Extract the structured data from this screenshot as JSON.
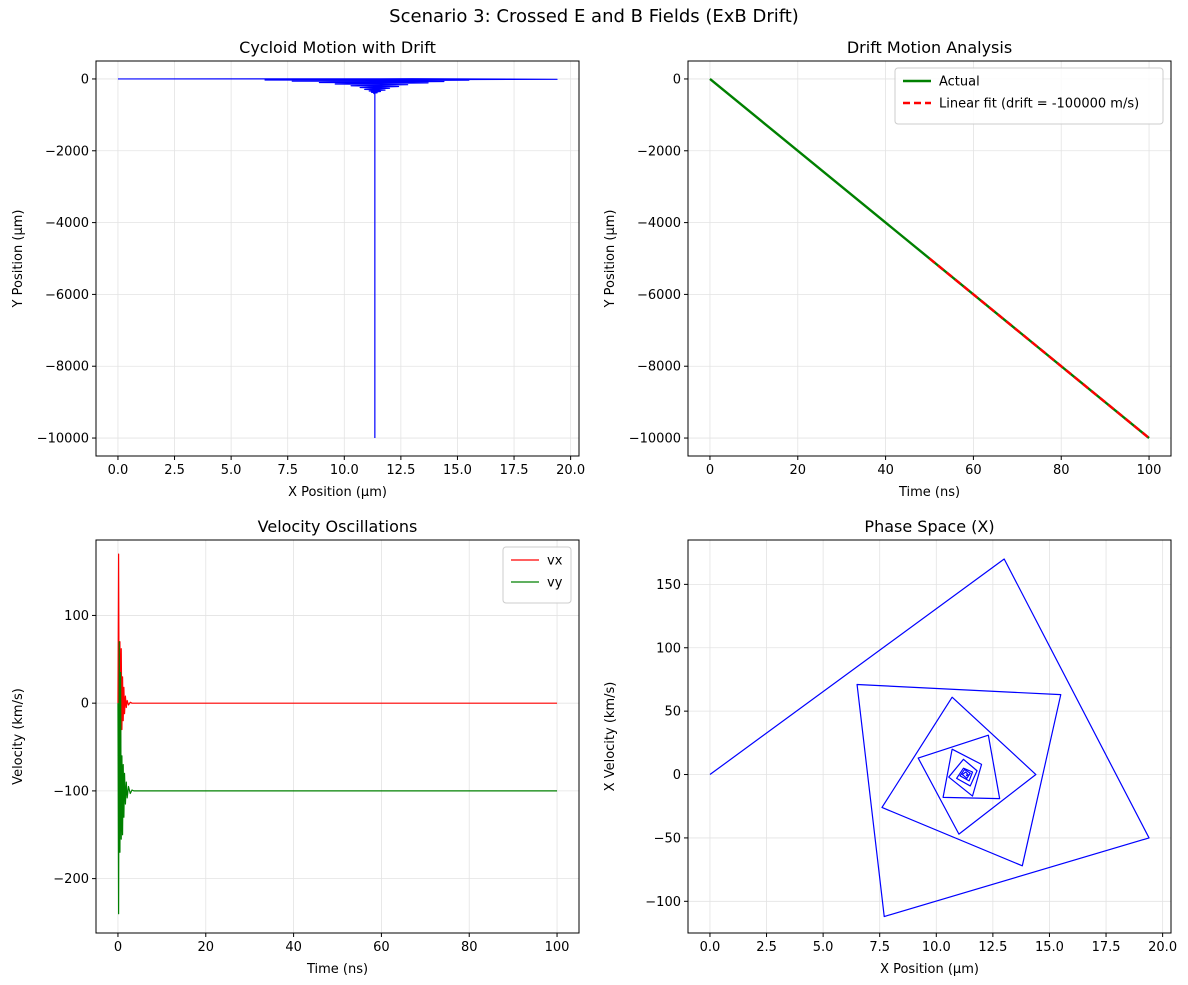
{
  "figure": {
    "suptitle": "Scenario 3: Crossed E and B Fields (ExB Drift)"
  },
  "colors": {
    "blue": "#0000ff",
    "red": "#ff0000",
    "green": "#008000",
    "grid": "#e3e3e3"
  },
  "chart_data": [
    {
      "type": "line",
      "title": "Cycloid Motion with Drift",
      "xlabel": "X Position (µm)",
      "ylabel": "Y Position (µm)",
      "xlim": [
        -0.97,
        20.37
      ],
      "ylim": [
        -10500,
        500
      ],
      "xticks": [
        0,
        2.5,
        5,
        7.5,
        10,
        12.5,
        15,
        17.5,
        20
      ],
      "xticklabels": [
        "0.0",
        "2.5",
        "5.0",
        "7.5",
        "10.0",
        "12.5",
        "15.0",
        "17.5",
        "20.0"
      ],
      "yticks": [
        0,
        -2000,
        -4000,
        -6000,
        -8000,
        -10000
      ],
      "yticklabels": [
        "0",
        "−2000",
        "−4000",
        "−6000",
        "−8000",
        "−10000"
      ],
      "grid": true,
      "series": [
        {
          "color": "#0000ff",
          "points": [
            [
              0,
              0
            ],
            [
              13.0,
              5
            ],
            [
              19.4,
              -10
            ],
            [
              6.5,
              -30
            ],
            [
              15.5,
              -35
            ],
            [
              7.7,
              -60
            ],
            [
              14.4,
              -70
            ],
            [
              8.9,
              -100
            ],
            [
              13.7,
              -110
            ],
            [
              9.6,
              -140
            ],
            [
              12.8,
              -160
            ],
            [
              10.3,
              -190
            ],
            [
              12.4,
              -210
            ],
            [
              10.7,
              -240
            ],
            [
              12.0,
              -260
            ],
            [
              10.9,
              -290
            ],
            [
              11.8,
              -310
            ],
            [
              11.1,
              -335
            ],
            [
              11.6,
              -350
            ],
            [
              11.2,
              -370
            ],
            [
              11.45,
              -385
            ],
            [
              11.3,
              -400
            ],
            [
              11.35,
              -420
            ],
            [
              11.35,
              -10000
            ]
          ]
        }
      ]
    },
    {
      "type": "line",
      "title": "Drift Motion Analysis",
      "xlabel": "Time (ns)",
      "ylabel": "Y Position (µm)",
      "xlim": [
        -5,
        105
      ],
      "ylim": [
        -10500,
        500
      ],
      "xticks": [
        0,
        20,
        40,
        60,
        80,
        100
      ],
      "xticklabels": [
        "0",
        "20",
        "40",
        "60",
        "80",
        "100"
      ],
      "yticks": [
        0,
        -2000,
        -4000,
        -6000,
        -8000,
        -10000
      ],
      "yticklabels": [
        "0",
        "−2000",
        "−4000",
        "−6000",
        "−8000",
        "−10000"
      ],
      "grid": true,
      "legend": "top-right",
      "series": [
        {
          "name": "Actual",
          "color": "#008000",
          "style": "solid",
          "points": [
            [
              0,
              0
            ],
            [
              100,
              -10000
            ]
          ]
        },
        {
          "name": "Linear fit (drift = -100000 m/s)",
          "color": "#ff0000",
          "style": "dashed",
          "points": [
            [
              50,
              -5000
            ],
            [
              100,
              -10000
            ]
          ]
        }
      ]
    },
    {
      "type": "line",
      "title": "Velocity Oscillations",
      "xlabel": "Time (ns)",
      "ylabel": "Velocity (km/s)",
      "xlim": [
        -5,
        105
      ],
      "ylim": [
        -262,
        186
      ],
      "xticks": [
        0,
        20,
        40,
        60,
        80,
        100
      ],
      "xticklabels": [
        "0",
        "20",
        "40",
        "60",
        "80",
        "100"
      ],
      "yticks": [
        100,
        0,
        -100,
        -200
      ],
      "yticklabels": [
        "100",
        "0",
        "−100",
        "−200"
      ],
      "grid": true,
      "legend": "top-right",
      "series": [
        {
          "name": "vx",
          "color": "#ff0000",
          "points": [
            [
              0,
              0
            ],
            [
              0.15,
              170
            ],
            [
              0.3,
              -50
            ],
            [
              0.45,
              70
            ],
            [
              0.6,
              -45
            ],
            [
              0.75,
              62
            ],
            [
              0.9,
              -30
            ],
            [
              1.05,
              30
            ],
            [
              1.2,
              -20
            ],
            [
              1.35,
              18
            ],
            [
              1.5,
              -12
            ],
            [
              1.7,
              8
            ],
            [
              1.9,
              -5
            ],
            [
              2.1,
              3
            ],
            [
              2.4,
              -2
            ],
            [
              2.8,
              1
            ],
            [
              3.2,
              0
            ],
            [
              100,
              0
            ]
          ]
        },
        {
          "name": "vy",
          "color": "#008000",
          "points": [
            [
              0,
              0
            ],
            [
              0.15,
              -240
            ],
            [
              0.3,
              70
            ],
            [
              0.45,
              -170
            ],
            [
              0.6,
              35
            ],
            [
              0.75,
              -155
            ],
            [
              0.9,
              -60
            ],
            [
              1.05,
              -150
            ],
            [
              1.2,
              -70
            ],
            [
              1.35,
              -130
            ],
            [
              1.5,
              -80
            ],
            [
              1.7,
              -115
            ],
            [
              1.9,
              -90
            ],
            [
              2.1,
              -108
            ],
            [
              2.4,
              -95
            ],
            [
              2.8,
              -103
            ],
            [
              3.2,
              -99
            ],
            [
              3.6,
              -100
            ],
            [
              100,
              -100
            ]
          ]
        }
      ]
    },
    {
      "type": "line",
      "title": "Phase Space (X)",
      "xlabel": "X Position (µm)",
      "ylabel": "X Velocity (km/s)",
      "xlim": [
        -0.97,
        20.37
      ],
      "ylim": [
        -125,
        185
      ],
      "xticks": [
        0,
        2.5,
        5,
        7.5,
        10,
        12.5,
        15,
        17.5,
        20
      ],
      "xticklabels": [
        "0.0",
        "2.5",
        "5.0",
        "7.5",
        "10.0",
        "12.5",
        "15.0",
        "17.5",
        "20.0"
      ],
      "yticks": [
        150,
        100,
        50,
        0,
        -50,
        -100
      ],
      "yticklabels": [
        "150",
        "100",
        "50",
        "0",
        "−50",
        "−100"
      ],
      "grid": true,
      "series": [
        {
          "color": "#0000ff",
          "points": [
            [
              0,
              0
            ],
            [
              13.0,
              170
            ],
            [
              19.4,
              -50
            ],
            [
              7.7,
              -112
            ],
            [
              6.5,
              71
            ],
            [
              15.5,
              63
            ],
            [
              13.8,
              -72
            ],
            [
              7.6,
              -26
            ],
            [
              10.7,
              61
            ],
            [
              14.4,
              0
            ],
            [
              11.0,
              -47
            ],
            [
              9.2,
              13
            ],
            [
              12.3,
              31
            ],
            [
              12.8,
              -19
            ],
            [
              10.3,
              -18
            ],
            [
              10.7,
              20
            ],
            [
              12.0,
              8
            ],
            [
              11.6,
              -17
            ],
            [
              10.55,
              -2
            ],
            [
              11.2,
              12
            ],
            [
              11.8,
              3
            ],
            [
              11.5,
              -9
            ],
            [
              10.9,
              -3
            ],
            [
              11.2,
              5
            ],
            [
              11.6,
              2
            ],
            [
              11.45,
              -5
            ],
            [
              11.05,
              -1
            ],
            [
              11.25,
              4
            ],
            [
              11.5,
              1
            ],
            [
              11.35,
              -3
            ],
            [
              11.15,
              0
            ],
            [
              11.3,
              2
            ],
            [
              11.4,
              0
            ],
            [
              11.35,
              -1
            ],
            [
              11.32,
              0
            ]
          ]
        }
      ]
    }
  ]
}
